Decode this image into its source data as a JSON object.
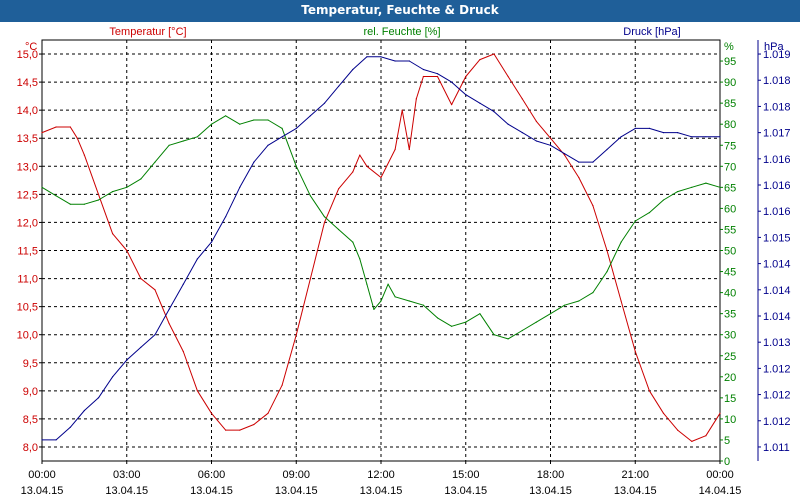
{
  "title": "Temperatur, Feuchte & Druck",
  "chart_data": {
    "type": "line",
    "title": "Temperatur, Feuchte & Druck",
    "x_ticks": [
      {
        "time": "00:00",
        "date": "13.04.15"
      },
      {
        "time": "03:00",
        "date": "13.04.15"
      },
      {
        "time": "06:00",
        "date": "13.04.15"
      },
      {
        "time": "09:00",
        "date": "13.04.15"
      },
      {
        "time": "12:00",
        "date": "13.04.15"
      },
      {
        "time": "15:00",
        "date": "13.04.15"
      },
      {
        "time": "18:00",
        "date": "13.04.15"
      },
      {
        "time": "21:00",
        "date": "13.04.15"
      },
      {
        "time": "00:00",
        "date": "14.04.15"
      }
    ],
    "xlim": [
      "13.04.15 00:00",
      "14.04.15 00:00"
    ],
    "grid": true,
    "axes": {
      "temp": {
        "label": "Temperatur [°C]",
        "unit": "°C",
        "color": "#cc0000",
        "min": 7.75,
        "max": 15.25,
        "ticks": [
          "8,0",
          "8,5",
          "9,0",
          "9,5",
          "10,0",
          "10,5",
          "11,0",
          "11,5",
          "12,0",
          "12,5",
          "13,0",
          "13,5",
          "14,0",
          "14,5",
          "15,0"
        ]
      },
      "hum": {
        "label": "rel. Feuchte [%]",
        "unit": "%",
        "color": "#008000",
        "min": 0,
        "max": 100,
        "ticks": [
          "0",
          "5",
          "10",
          "15",
          "20",
          "25",
          "30",
          "35",
          "40",
          "45",
          "50",
          "55",
          "60",
          "65",
          "70",
          "75",
          "80",
          "85",
          "90",
          "95"
        ]
      },
      "press": {
        "label": "Druck [hPa]",
        "unit": "hPa",
        "color": "#00008b",
        "ticks": [
          "1.011",
          "1.012",
          "1.012",
          "1.012",
          "1.013",
          "1.014",
          "1.014",
          "1.014",
          "1.015",
          "1.016",
          "1.016",
          "1.016",
          "1.017",
          "1.018",
          "1.018",
          "1.019"
        ]
      }
    },
    "series": [
      {
        "name": "Temperatur [°C]",
        "axis": "temp",
        "color": "#cc0000",
        "data": [
          [
            "00:00",
            13.6
          ],
          [
            "00:30",
            13.7
          ],
          [
            "01:00",
            13.7
          ],
          [
            "01:15",
            13.5
          ],
          [
            "01:30",
            13.2
          ],
          [
            "02:00",
            12.5
          ],
          [
            "02:30",
            11.8
          ],
          [
            "03:00",
            11.5
          ],
          [
            "03:30",
            11.0
          ],
          [
            "04:00",
            10.8
          ],
          [
            "04:30",
            10.2
          ],
          [
            "05:00",
            9.7
          ],
          [
            "05:30",
            9.0
          ],
          [
            "06:00",
            8.6
          ],
          [
            "06:30",
            8.3
          ],
          [
            "07:00",
            8.3
          ],
          [
            "07:30",
            8.4
          ],
          [
            "08:00",
            8.6
          ],
          [
            "08:30",
            9.1
          ],
          [
            "09:00",
            10.0
          ],
          [
            "09:30",
            11.0
          ],
          [
            "10:00",
            12.0
          ],
          [
            "10:30",
            12.6
          ],
          [
            "11:00",
            12.9
          ],
          [
            "11:15",
            13.2
          ],
          [
            "11:30",
            13.0
          ],
          [
            "12:00",
            12.8
          ],
          [
            "12:30",
            13.3
          ],
          [
            "12:45",
            14.0
          ],
          [
            "13:00",
            13.3
          ],
          [
            "13:15",
            14.2
          ],
          [
            "13:30",
            14.6
          ],
          [
            "14:00",
            14.6
          ],
          [
            "14:30",
            14.1
          ],
          [
            "15:00",
            14.6
          ],
          [
            "15:30",
            14.9
          ],
          [
            "16:00",
            15.0
          ],
          [
            "16:30",
            14.6
          ],
          [
            "17:00",
            14.2
          ],
          [
            "17:30",
            13.8
          ],
          [
            "18:00",
            13.5
          ],
          [
            "18:30",
            13.2
          ],
          [
            "19:00",
            12.8
          ],
          [
            "19:30",
            12.3
          ],
          [
            "20:00",
            11.5
          ],
          [
            "20:30",
            10.6
          ],
          [
            "21:00",
            9.7
          ],
          [
            "21:30",
            9.0
          ],
          [
            "22:00",
            8.6
          ],
          [
            "22:30",
            8.3
          ],
          [
            "23:00",
            8.1
          ],
          [
            "23:30",
            8.2
          ],
          [
            "24:00",
            8.6
          ]
        ]
      },
      {
        "name": "rel. Feuchte [%]",
        "axis": "hum",
        "color": "#008000",
        "data": [
          [
            "00:00",
            65
          ],
          [
            "00:30",
            63
          ],
          [
            "01:00",
            61
          ],
          [
            "01:30",
            61
          ],
          [
            "02:00",
            62
          ],
          [
            "02:30",
            64
          ],
          [
            "03:00",
            65
          ],
          [
            "03:30",
            67
          ],
          [
            "04:00",
            71
          ],
          [
            "04:30",
            75
          ],
          [
            "05:00",
            76
          ],
          [
            "05:30",
            77
          ],
          [
            "06:00",
            80
          ],
          [
            "06:30",
            82
          ],
          [
            "07:00",
            80
          ],
          [
            "07:30",
            81
          ],
          [
            "08:00",
            81
          ],
          [
            "08:30",
            79
          ],
          [
            "09:00",
            70
          ],
          [
            "09:30",
            63
          ],
          [
            "10:00",
            58
          ],
          [
            "10:30",
            55
          ],
          [
            "11:00",
            52
          ],
          [
            "11:15",
            48
          ],
          [
            "11:30",
            42
          ],
          [
            "11:45",
            36
          ],
          [
            "12:00",
            38
          ],
          [
            "12:15",
            42
          ],
          [
            "12:30",
            39
          ],
          [
            "13:00",
            38
          ],
          [
            "13:30",
            37
          ],
          [
            "14:00",
            34
          ],
          [
            "14:30",
            32
          ],
          [
            "15:00",
            33
          ],
          [
            "15:30",
            35
          ],
          [
            "16:00",
            30
          ],
          [
            "16:30",
            29
          ],
          [
            "17:00",
            31
          ],
          [
            "17:30",
            33
          ],
          [
            "18:00",
            35
          ],
          [
            "18:30",
            37
          ],
          [
            "19:00",
            38
          ],
          [
            "19:30",
            40
          ],
          [
            "20:00",
            45
          ],
          [
            "20:30",
            52
          ],
          [
            "21:00",
            57
          ],
          [
            "21:30",
            59
          ],
          [
            "22:00",
            62
          ],
          [
            "22:30",
            64
          ],
          [
            "23:00",
            65
          ],
          [
            "23:30",
            66
          ],
          [
            "24:00",
            65
          ]
        ]
      },
      {
        "name": "Druck [hPa]",
        "axis": "press",
        "color": "#00008b",
        "data": [
          [
            "00:00",
            5
          ],
          [
            "00:30",
            5
          ],
          [
            "01:00",
            8
          ],
          [
            "01:30",
            12
          ],
          [
            "02:00",
            15
          ],
          [
            "02:30",
            20
          ],
          [
            "03:00",
            24
          ],
          [
            "03:30",
            27
          ],
          [
            "04:00",
            30
          ],
          [
            "04:30",
            36
          ],
          [
            "05:00",
            42
          ],
          [
            "05:30",
            48
          ],
          [
            "06:00",
            52
          ],
          [
            "06:30",
            58
          ],
          [
            "07:00",
            65
          ],
          [
            "07:30",
            71
          ],
          [
            "08:00",
            75
          ],
          [
            "08:30",
            77
          ],
          [
            "09:00",
            79
          ],
          [
            "09:30",
            82
          ],
          [
            "10:00",
            85
          ],
          [
            "10:30",
            89
          ],
          [
            "11:00",
            93
          ],
          [
            "11:30",
            96
          ],
          [
            "12:00",
            96
          ],
          [
            "12:30",
            95
          ],
          [
            "13:00",
            95
          ],
          [
            "13:30",
            93
          ],
          [
            "14:00",
            92
          ],
          [
            "14:30",
            90
          ],
          [
            "15:00",
            87
          ],
          [
            "15:30",
            85
          ],
          [
            "16:00",
            83
          ],
          [
            "16:30",
            80
          ],
          [
            "17:00",
            78
          ],
          [
            "17:30",
            76
          ],
          [
            "18:00",
            75
          ],
          [
            "18:30",
            73
          ],
          [
            "19:00",
            71
          ],
          [
            "19:30",
            71
          ],
          [
            "20:00",
            74
          ],
          [
            "20:30",
            77
          ],
          [
            "21:00",
            79
          ],
          [
            "21:30",
            79
          ],
          [
            "22:00",
            78
          ],
          [
            "22:30",
            78
          ],
          [
            "23:00",
            77
          ],
          [
            "23:30",
            77
          ],
          [
            "24:00",
            77
          ]
        ]
      }
    ]
  }
}
